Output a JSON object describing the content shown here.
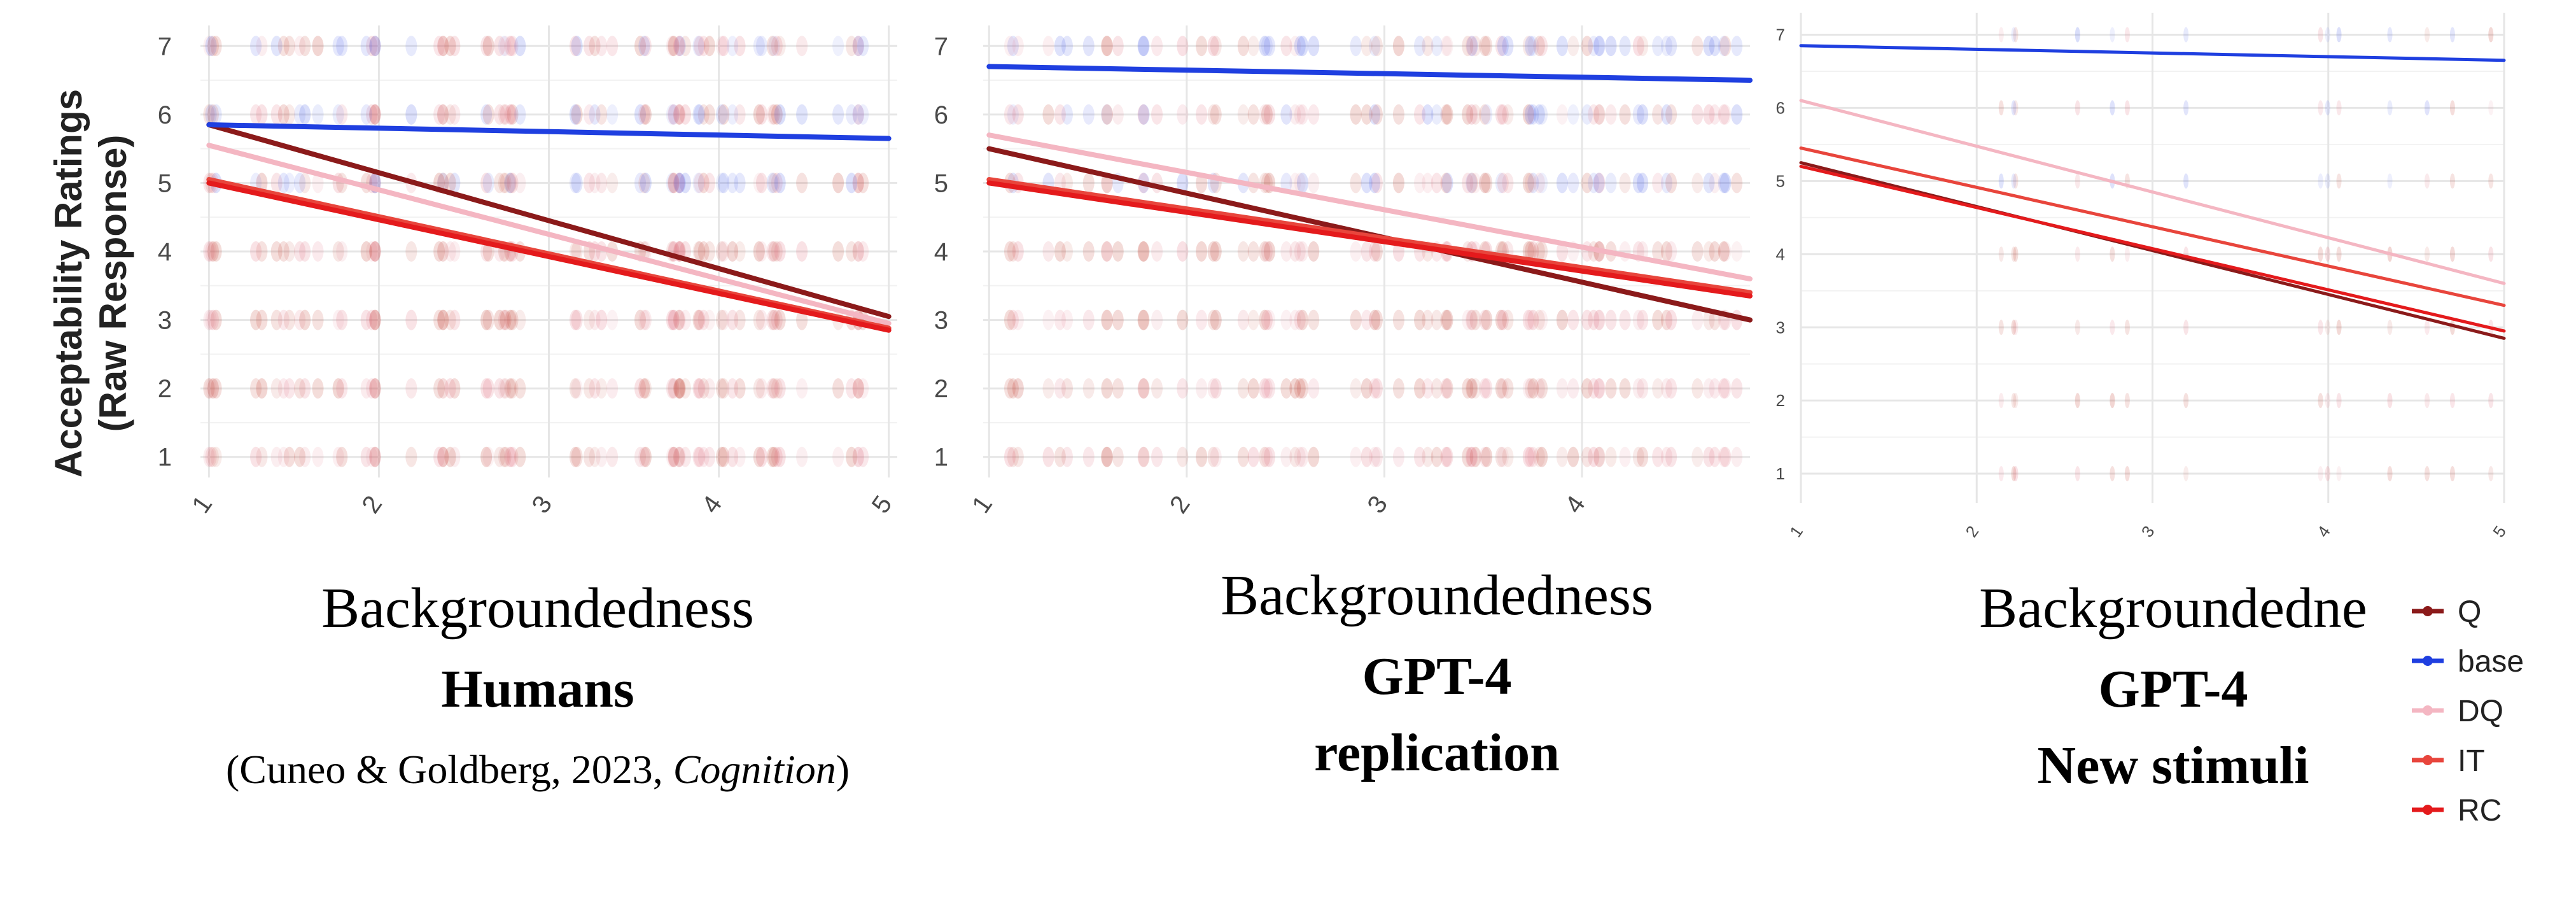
{
  "y_axis_title_line1": "Acceptability Ratings",
  "y_axis_title_line2": "(Raw Response)",
  "legend": [
    {
      "label": "Q",
      "color": "#8b1a1a"
    },
    {
      "label": "base",
      "color": "#1f3fe0"
    },
    {
      "label": "DQ",
      "color": "#f4b6c2"
    },
    {
      "label": "IT",
      "color": "#e8453c"
    },
    {
      "label": "RC",
      "color": "#e41a1c"
    }
  ],
  "chart_data": [
    {
      "type": "scatter",
      "xlabel": "Backgroundedness",
      "caption_bold": "Humans",
      "citation": {
        "prefix": "(Cuneo & Goldberg, 2023, ",
        "journal": "Cognition",
        "suffix": ")"
      },
      "xticks": [
        1,
        2,
        3,
        4,
        5
      ],
      "yticks": [
        1,
        2,
        3,
        4,
        5,
        6,
        7
      ],
      "xlim": [
        0.95,
        5.05
      ],
      "ylim": [
        0.7,
        7.3
      ],
      "series": [
        {
          "name": "Q",
          "line": {
            "x": [
              1,
              5
            ],
            "y": [
              5.85,
              3.05
            ]
          }
        },
        {
          "name": "base",
          "line": {
            "x": [
              1,
              5
            ],
            "y": [
              5.85,
              5.65
            ]
          }
        },
        {
          "name": "DQ",
          "line": {
            "x": [
              1,
              5
            ],
            "y": [
              5.55,
              2.95
            ]
          }
        },
        {
          "name": "IT",
          "line": {
            "x": [
              1,
              5
            ],
            "y": [
              5.05,
              2.88
            ]
          }
        },
        {
          "name": "RC",
          "line": {
            "x": [
              1,
              5
            ],
            "y": [
              5.0,
              2.85
            ]
          }
        }
      ]
    },
    {
      "type": "scatter",
      "xlabel": "Backgroundedness",
      "caption_bold": "GPT-4",
      "caption_bold2": "replication",
      "xticks": [
        1,
        2,
        3,
        4
      ],
      "yticks": [
        1,
        2,
        3,
        4,
        5,
        6,
        7
      ],
      "xlim": [
        0.97,
        4.85
      ],
      "ylim": [
        0.7,
        7.3
      ],
      "series": [
        {
          "name": "Q",
          "line": {
            "x": [
              1,
              4.85
            ],
            "y": [
              5.5,
              3.0
            ]
          }
        },
        {
          "name": "base",
          "line": {
            "x": [
              1,
              4.85
            ],
            "y": [
              6.7,
              6.5
            ]
          }
        },
        {
          "name": "DQ",
          "line": {
            "x": [
              1,
              4.85
            ],
            "y": [
              5.7,
              3.6
            ]
          }
        },
        {
          "name": "IT",
          "line": {
            "x": [
              1,
              4.85
            ],
            "y": [
              5.05,
              3.4
            ]
          }
        },
        {
          "name": "RC",
          "line": {
            "x": [
              1,
              4.85
            ],
            "y": [
              5.0,
              3.35
            ]
          }
        }
      ]
    },
    {
      "type": "scatter",
      "xlabel": "Backgroundedne",
      "caption_bold": "GPT-4",
      "caption_bold2": "New stimuli",
      "xticks": [
        1,
        2,
        3,
        4,
        5
      ],
      "yticks": [
        1,
        2,
        3,
        4,
        5,
        6,
        7
      ],
      "xlim": [
        1,
        5
      ],
      "ylim": [
        0.6,
        7.3
      ],
      "series": [
        {
          "name": "Q",
          "line": {
            "x": [
              1,
              5
            ],
            "y": [
              5.25,
              2.85
            ]
          }
        },
        {
          "name": "base",
          "line": {
            "x": [
              1,
              5
            ],
            "y": [
              6.85,
              6.65
            ]
          }
        },
        {
          "name": "DQ",
          "line": {
            "x": [
              1,
              5
            ],
            "y": [
              6.1,
              3.6
            ]
          }
        },
        {
          "name": "IT",
          "line": {
            "x": [
              1,
              5
            ],
            "y": [
              5.45,
              3.3
            ]
          }
        },
        {
          "name": "RC",
          "line": {
            "x": [
              1,
              5
            ],
            "y": [
              5.2,
              2.95
            ]
          }
        }
      ]
    }
  ]
}
